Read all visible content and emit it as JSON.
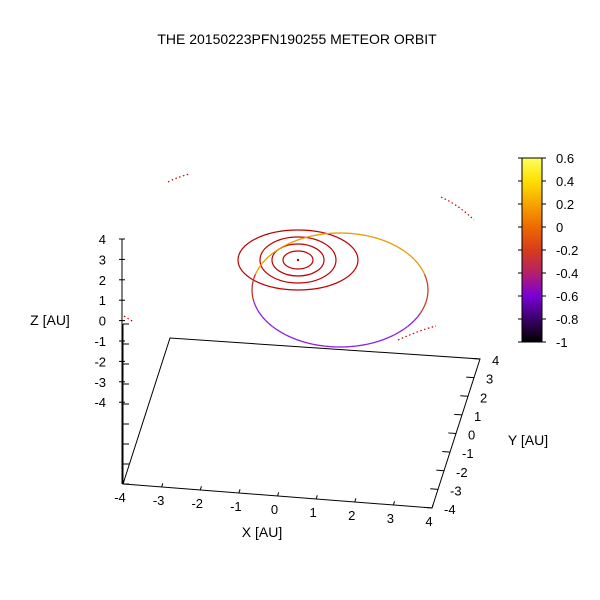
{
  "chart_data": {
    "type": "line",
    "title": "THE 20150223PFN190255 METEOR ORBIT",
    "xlabel": "X [AU]",
    "ylabel": "Y [AU]",
    "zlabel": "Z [AU]",
    "xlim": [
      -4,
      4
    ],
    "ylim": [
      -4,
      4
    ],
    "zlim": [
      -4,
      4
    ],
    "x_ticks": [
      "-4",
      "-3",
      "-2",
      "-1",
      "0",
      "1",
      "2",
      "3",
      "4"
    ],
    "y_ticks": [
      "-4",
      "-3",
      "-2",
      "-1",
      "0",
      "1",
      "2",
      "3",
      "4"
    ],
    "z_ticks": [
      "-4",
      "-3",
      "-2",
      "-1",
      "0",
      "1",
      "2",
      "3",
      "4"
    ],
    "colorbar": {
      "range": [
        -1,
        0.6
      ],
      "ticks": [
        "0.6",
        "0.4",
        "0.2",
        "0",
        "-0.2",
        "-0.4",
        "-0.6",
        "-0.8",
        "-1"
      ],
      "colors": [
        "#000000",
        "#3a0068",
        "#7a00d8",
        "#b3206a",
        "#d83c1c",
        "#ec6a00",
        "#f7a400",
        "#fde000",
        "#ffff60"
      ]
    },
    "series": [
      {
        "values": [],
        "radius_au": 0.39,
        "color": "#c00000"
      },
      {
        "values": [],
        "radius_au": 0.72,
        "color": "#c00000"
      },
      {
        "values": [],
        "radius_au": 1.0,
        "color": "#c00000"
      },
      {
        "values": [],
        "radius_au": 1.52,
        "color": "#c00000"
      },
      {
        "values": [],
        "radius_au": 5.2,
        "color": "#c00000",
        "dotted": true
      },
      {
        "values": [],
        "semi_major_au": 2.4,
        "eccentricity": 0.6,
        "inclination_deg": 25,
        "color_gradient": true
      }
    ]
  }
}
